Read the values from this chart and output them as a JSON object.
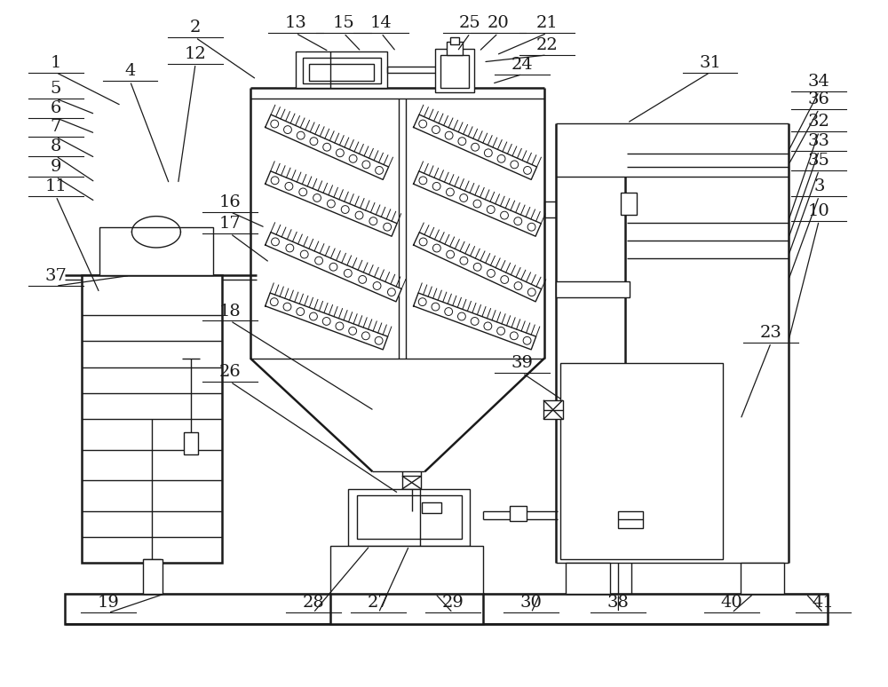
{
  "bg_color": "#ffffff",
  "line_color": "#1a1a1a",
  "lw": 1.0,
  "lw2": 1.8,
  "fig_width": 10.0,
  "fig_height": 7.74
}
